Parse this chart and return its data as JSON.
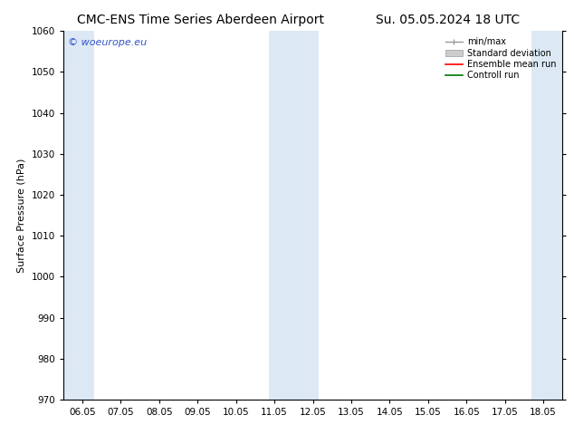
{
  "title_left": "CMC-ENS Time Series Aberdeen Airport",
  "title_right": "Su. 05.05.2024 18 UTC",
  "ylabel": "Surface Pressure (hPa)",
  "ylim": [
    970,
    1060
  ],
  "yticks": [
    970,
    980,
    990,
    1000,
    1010,
    1020,
    1030,
    1040,
    1050,
    1060
  ],
  "xlabel": "",
  "xtick_labels": [
    "06.05",
    "07.05",
    "08.05",
    "09.05",
    "10.05",
    "11.05",
    "12.05",
    "13.05",
    "14.05",
    "15.05",
    "16.05",
    "17.05",
    "18.05"
  ],
  "xtick_positions": [
    0,
    1,
    2,
    3,
    4,
    5,
    6,
    7,
    8,
    9,
    10,
    11,
    12
  ],
  "xlim": [
    -0.5,
    12.5
  ],
  "shaded_bands": [
    {
      "xmin": -0.5,
      "xmax": 0.3
    },
    {
      "xmin": 4.85,
      "xmax": 6.15
    },
    {
      "xmin": 11.7,
      "xmax": 12.5
    }
  ],
  "shade_color": "#dce9f5",
  "watermark_text": "© woeurope.eu",
  "watermark_color": "#3355cc",
  "legend_labels": [
    "min/max",
    "Standard deviation",
    "Ensemble mean run",
    "Controll run"
  ],
  "legend_colors": [
    "#999999",
    "#cccccc",
    "#ff0000",
    "#007700"
  ],
  "background_color": "#ffffff",
  "title_fontsize": 10,
  "axis_fontsize": 8,
  "tick_fontsize": 7.5
}
